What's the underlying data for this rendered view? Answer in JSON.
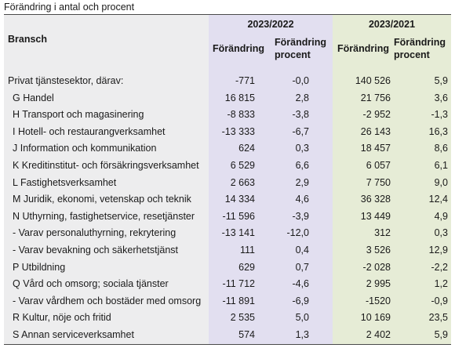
{
  "caption": "Förändring i antal och procent",
  "header": {
    "bransch": "Bransch",
    "period_1": "2023/2022",
    "period_2": "2023/2021",
    "change_label": "Förändring",
    "change_percent_label": "Förändring procent"
  },
  "rows": [
    {
      "label": "Privat tjänstesektor, därav:",
      "indent": false,
      "change_2022": "-771",
      "pct_2022": "-0,0",
      "change_2021": "140 526",
      "pct_2021": "5,9"
    },
    {
      "label": "G Handel",
      "indent": true,
      "change_2022": "16 815",
      "pct_2022": "2,8",
      "change_2021": "21 756",
      "pct_2021": "3,6"
    },
    {
      "label": "H Transport och magasinering",
      "indent": true,
      "change_2022": "-8 833",
      "pct_2022": "-3,8",
      "change_2021": "-2 952",
      "pct_2021": "-1,3"
    },
    {
      "label": "I Hotell- och restaurangverksamhet",
      "indent": true,
      "change_2022": "-13 333",
      "pct_2022": "-6,7",
      "change_2021": "26 143",
      "pct_2021": "16,3"
    },
    {
      "label": "J Information och kommunikation",
      "indent": true,
      "change_2022": "624",
      "pct_2022": "0,3",
      "change_2021": "18 457",
      "pct_2021": "8,6"
    },
    {
      "label": "K Kreditinstitut- och försäkringsverksamhet",
      "indent": true,
      "change_2022": "6 529",
      "pct_2022": "6,6",
      "change_2021": "6 057",
      "pct_2021": "6,1"
    },
    {
      "label": "L Fastighetsverksamhet",
      "indent": true,
      "change_2022": "2 663",
      "pct_2022": "2,9",
      "change_2021": "7 750",
      "pct_2021": "9,0"
    },
    {
      "label": "M Juridik, ekonomi, vetenskap och teknik",
      "indent": true,
      "change_2022": "14 334",
      "pct_2022": "4,6",
      "change_2021": "36 328",
      "pct_2021": "12,4"
    },
    {
      "label": "N Uthyrning, fastighetservice, resetjänster",
      "indent": true,
      "change_2022": "-11 596",
      "pct_2022": "-3,9",
      "change_2021": "13 449",
      "pct_2021": "4,9"
    },
    {
      "label": "- Varav personaluthyrning, rekrytering",
      "indent": true,
      "change_2022": "-13 141",
      "pct_2022": "-12,0",
      "change_2021": "312",
      "pct_2021": "0,3"
    },
    {
      "label": "- Varav bevakning och säkerhetstjänst",
      "indent": true,
      "change_2022": "111",
      "pct_2022": "0,4",
      "change_2021": "3 526",
      "pct_2021": "12,9"
    },
    {
      "label": "P Utbildning",
      "indent": true,
      "change_2022": "629",
      "pct_2022": "0,7",
      "change_2021": "-2 028",
      "pct_2021": "-2,2"
    },
    {
      "label": "Q Vård och omsorg; sociala tjänster",
      "indent": true,
      "change_2022": "-11 712",
      "pct_2022": "-4,6",
      "change_2021": "2 995",
      "pct_2021": "1,2"
    },
    {
      "label": "- Varav vårdhem och bostäder med omsorg",
      "indent": true,
      "change_2022": "-11 891",
      "pct_2022": "-6,9",
      "change_2021": "-1520",
      "pct_2021": "-0,9"
    },
    {
      "label": "R Kultur, nöje och fritid",
      "indent": true,
      "change_2022": "2 535",
      "pct_2022": "5,0",
      "change_2021": "10 169",
      "pct_2021": "23,5"
    },
    {
      "label": "S Annan serviceverksamhet",
      "indent": true,
      "change_2022": "574",
      "pct_2022": "1,3",
      "change_2021": "2 402",
      "pct_2021": "5,9"
    }
  ]
}
